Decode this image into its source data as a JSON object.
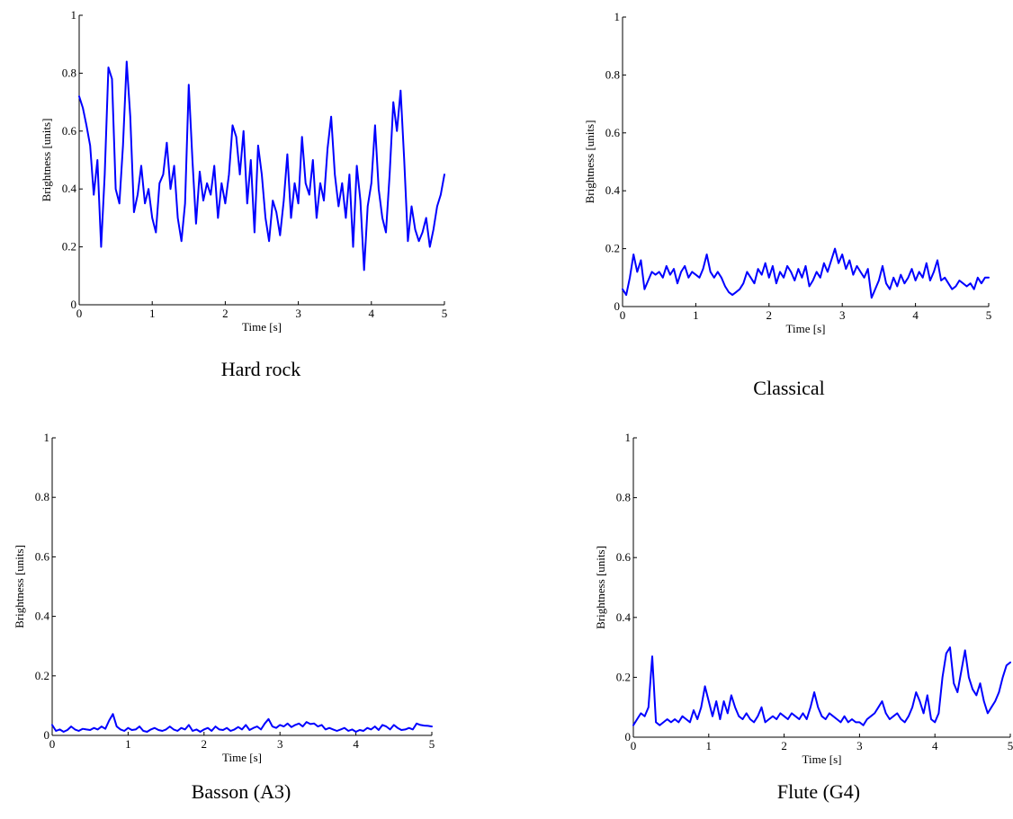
{
  "captions": [
    "Hard rock",
    "Classical",
    "Basson (A3)",
    "Flute (G4)"
  ],
  "chart_data": [
    {
      "type": "line",
      "title": "",
      "caption": "Hard rock",
      "xlabel": "Time [s]",
      "ylabel": "Brightness [units]",
      "xlim": [
        0,
        5
      ],
      "ylim": [
        0,
        1
      ],
      "xticks": [
        "0",
        "1",
        "2",
        "3",
        "4",
        "5"
      ],
      "yticks": [
        "0",
        "0.2",
        "0.4",
        "0.6",
        "0.8",
        "1"
      ],
      "grid": false,
      "color": "#0000ff",
      "x": [
        0.0,
        0.05,
        0.1,
        0.15,
        0.2,
        0.25,
        0.3,
        0.35,
        0.4,
        0.45,
        0.5,
        0.55,
        0.6,
        0.65,
        0.7,
        0.75,
        0.8,
        0.85,
        0.9,
        0.95,
        1.0,
        1.05,
        1.1,
        1.15,
        1.2,
        1.25,
        1.3,
        1.35,
        1.4,
        1.45,
        1.5,
        1.55,
        1.6,
        1.65,
        1.7,
        1.75,
        1.8,
        1.85,
        1.9,
        1.95,
        2.0,
        2.05,
        2.1,
        2.15,
        2.2,
        2.25,
        2.3,
        2.35,
        2.4,
        2.45,
        2.5,
        2.55,
        2.6,
        2.65,
        2.7,
        2.75,
        2.8,
        2.85,
        2.9,
        2.95,
        3.0,
        3.05,
        3.1,
        3.15,
        3.2,
        3.25,
        3.3,
        3.35,
        3.4,
        3.45,
        3.5,
        3.55,
        3.6,
        3.65,
        3.7,
        3.75,
        3.8,
        3.85,
        3.9,
        3.95,
        4.0,
        4.05,
        4.1,
        4.15,
        4.2,
        4.25,
        4.3,
        4.35,
        4.4,
        4.45,
        4.5,
        4.55,
        4.6,
        4.65,
        4.7,
        4.75,
        4.8,
        4.85,
        4.9,
        4.95,
        5.0
      ],
      "y": [
        0.72,
        0.68,
        0.62,
        0.55,
        0.38,
        0.5,
        0.2,
        0.45,
        0.82,
        0.78,
        0.4,
        0.35,
        0.55,
        0.84,
        0.65,
        0.32,
        0.38,
        0.48,
        0.35,
        0.4,
        0.3,
        0.25,
        0.42,
        0.45,
        0.56,
        0.4,
        0.48,
        0.3,
        0.22,
        0.35,
        0.76,
        0.5,
        0.28,
        0.46,
        0.36,
        0.42,
        0.38,
        0.48,
        0.3,
        0.42,
        0.35,
        0.45,
        0.62,
        0.58,
        0.45,
        0.6,
        0.35,
        0.5,
        0.25,
        0.55,
        0.45,
        0.3,
        0.22,
        0.36,
        0.32,
        0.24,
        0.36,
        0.52,
        0.3,
        0.42,
        0.35,
        0.58,
        0.42,
        0.38,
        0.5,
        0.3,
        0.42,
        0.36,
        0.54,
        0.65,
        0.45,
        0.34,
        0.42,
        0.3,
        0.45,
        0.2,
        0.48,
        0.36,
        0.12,
        0.34,
        0.42,
        0.62,
        0.4,
        0.3,
        0.25,
        0.45,
        0.7,
        0.6,
        0.74,
        0.5,
        0.22,
        0.34,
        0.26,
        0.22,
        0.25,
        0.3,
        0.2,
        0.26,
        0.34,
        0.38,
        0.45
      ]
    },
    {
      "type": "line",
      "title": "",
      "caption": "Classical",
      "xlabel": "Time [s]",
      "ylabel": "Brightness [units]",
      "xlim": [
        0,
        5
      ],
      "ylim": [
        0,
        1
      ],
      "xticks": [
        "0",
        "1",
        "2",
        "3",
        "4",
        "5"
      ],
      "yticks": [
        "0",
        "0.2",
        "0.4",
        "0.6",
        "0.8",
        "1"
      ],
      "grid": false,
      "color": "#0000ff",
      "x": [
        0.0,
        0.05,
        0.1,
        0.15,
        0.2,
        0.25,
        0.3,
        0.35,
        0.4,
        0.45,
        0.5,
        0.55,
        0.6,
        0.65,
        0.7,
        0.75,
        0.8,
        0.85,
        0.9,
        0.95,
        1.0,
        1.05,
        1.1,
        1.15,
        1.2,
        1.25,
        1.3,
        1.35,
        1.4,
        1.45,
        1.5,
        1.55,
        1.6,
        1.65,
        1.7,
        1.75,
        1.8,
        1.85,
        1.9,
        1.95,
        2.0,
        2.05,
        2.1,
        2.15,
        2.2,
        2.25,
        2.3,
        2.35,
        2.4,
        2.45,
        2.5,
        2.55,
        2.6,
        2.65,
        2.7,
        2.75,
        2.8,
        2.85,
        2.9,
        2.95,
        3.0,
        3.05,
        3.1,
        3.15,
        3.2,
        3.25,
        3.3,
        3.35,
        3.4,
        3.45,
        3.5,
        3.55,
        3.6,
        3.65,
        3.7,
        3.75,
        3.8,
        3.85,
        3.9,
        3.95,
        4.0,
        4.05,
        4.1,
        4.15,
        4.2,
        4.25,
        4.3,
        4.35,
        4.4,
        4.45,
        4.5,
        4.55,
        4.6,
        4.65,
        4.7,
        4.75,
        4.8,
        4.85,
        4.9,
        4.95,
        5.0
      ],
      "y": [
        0.06,
        0.04,
        0.1,
        0.18,
        0.12,
        0.16,
        0.06,
        0.09,
        0.12,
        0.11,
        0.12,
        0.1,
        0.14,
        0.11,
        0.13,
        0.08,
        0.12,
        0.14,
        0.1,
        0.12,
        0.11,
        0.1,
        0.13,
        0.18,
        0.12,
        0.1,
        0.12,
        0.1,
        0.07,
        0.05,
        0.04,
        0.05,
        0.06,
        0.08,
        0.12,
        0.1,
        0.08,
        0.13,
        0.11,
        0.15,
        0.1,
        0.14,
        0.08,
        0.12,
        0.1,
        0.14,
        0.12,
        0.09,
        0.13,
        0.1,
        0.14,
        0.07,
        0.09,
        0.12,
        0.1,
        0.15,
        0.12,
        0.16,
        0.2,
        0.15,
        0.18,
        0.13,
        0.16,
        0.11,
        0.14,
        0.12,
        0.1,
        0.13,
        0.03,
        0.06,
        0.09,
        0.14,
        0.08,
        0.06,
        0.1,
        0.07,
        0.11,
        0.08,
        0.1,
        0.13,
        0.09,
        0.12,
        0.1,
        0.15,
        0.09,
        0.12,
        0.16,
        0.09,
        0.1,
        0.08,
        0.06,
        0.07,
        0.09,
        0.08,
        0.07,
        0.08,
        0.06,
        0.1,
        0.08,
        0.1,
        0.1
      ]
    },
    {
      "type": "line",
      "title": "",
      "caption": "Basson (A3)",
      "xlabel": "Time [s]",
      "ylabel": "Brightness [units]",
      "xlim": [
        0,
        5
      ],
      "ylim": [
        0,
        1
      ],
      "xticks": [
        "0",
        "1",
        "2",
        "3",
        "4",
        "5"
      ],
      "yticks": [
        "0",
        "0.2",
        "0.4",
        "0.6",
        "0.8",
        "1"
      ],
      "grid": false,
      "color": "#0000ff",
      "x": [
        0.0,
        0.05,
        0.1,
        0.15,
        0.2,
        0.25,
        0.3,
        0.35,
        0.4,
        0.45,
        0.5,
        0.55,
        0.6,
        0.65,
        0.7,
        0.75,
        0.8,
        0.85,
        0.9,
        0.95,
        1.0,
        1.05,
        1.1,
        1.15,
        1.2,
        1.25,
        1.3,
        1.35,
        1.4,
        1.45,
        1.5,
        1.55,
        1.6,
        1.65,
        1.7,
        1.75,
        1.8,
        1.85,
        1.9,
        1.95,
        2.0,
        2.05,
        2.1,
        2.15,
        2.2,
        2.25,
        2.3,
        2.35,
        2.4,
        2.45,
        2.5,
        2.55,
        2.6,
        2.65,
        2.7,
        2.75,
        2.8,
        2.85,
        2.9,
        2.95,
        3.0,
        3.05,
        3.1,
        3.15,
        3.2,
        3.25,
        3.3,
        3.35,
        3.4,
        3.45,
        3.5,
        3.55,
        3.6,
        3.65,
        3.7,
        3.75,
        3.8,
        3.85,
        3.9,
        3.95,
        4.0,
        4.05,
        4.1,
        4.15,
        4.2,
        4.25,
        4.3,
        4.35,
        4.4,
        4.45,
        4.5,
        4.55,
        4.6,
        4.65,
        4.7,
        4.75,
        4.8,
        4.85,
        4.9,
        4.95,
        5.0
      ],
      "y": [
        0.035,
        0.015,
        0.02,
        0.012,
        0.018,
        0.03,
        0.02,
        0.015,
        0.022,
        0.02,
        0.018,
        0.025,
        0.02,
        0.03,
        0.022,
        0.05,
        0.072,
        0.03,
        0.02,
        0.015,
        0.025,
        0.018,
        0.02,
        0.03,
        0.015,
        0.012,
        0.02,
        0.025,
        0.018,
        0.015,
        0.02,
        0.03,
        0.02,
        0.015,
        0.025,
        0.02,
        0.035,
        0.015,
        0.02,
        0.012,
        0.02,
        0.025,
        0.015,
        0.03,
        0.02,
        0.018,
        0.025,
        0.015,
        0.02,
        0.028,
        0.02,
        0.035,
        0.018,
        0.025,
        0.03,
        0.02,
        0.04,
        0.055,
        0.03,
        0.025,
        0.035,
        0.03,
        0.04,
        0.028,
        0.035,
        0.04,
        0.03,
        0.045,
        0.038,
        0.04,
        0.03,
        0.035,
        0.02,
        0.025,
        0.02,
        0.015,
        0.02,
        0.025,
        0.015,
        0.02,
        0.012,
        0.018,
        0.015,
        0.025,
        0.02,
        0.03,
        0.018,
        0.035,
        0.03,
        0.02,
        0.035,
        0.025,
        0.018,
        0.02,
        0.025,
        0.02,
        0.04,
        0.035,
        0.033,
        0.032,
        0.03
      ]
    },
    {
      "type": "line",
      "title": "",
      "caption": "Flute (G4)",
      "xlabel": "Time [s]",
      "ylabel": "Brightness [units]",
      "xlim": [
        0,
        5
      ],
      "ylim": [
        0,
        1
      ],
      "xticks": [
        "0",
        "1",
        "2",
        "3",
        "4",
        "5"
      ],
      "yticks": [
        "0",
        "0.2",
        "0.4",
        "0.6",
        "0.8",
        "1"
      ],
      "grid": false,
      "color": "#0000ff",
      "x": [
        0.0,
        0.05,
        0.1,
        0.15,
        0.2,
        0.25,
        0.3,
        0.35,
        0.4,
        0.45,
        0.5,
        0.55,
        0.6,
        0.65,
        0.7,
        0.75,
        0.8,
        0.85,
        0.9,
        0.95,
        1.0,
        1.05,
        1.1,
        1.15,
        1.2,
        1.25,
        1.3,
        1.35,
        1.4,
        1.45,
        1.5,
        1.55,
        1.6,
        1.65,
        1.7,
        1.75,
        1.8,
        1.85,
        1.9,
        1.95,
        2.0,
        2.05,
        2.1,
        2.15,
        2.2,
        2.25,
        2.3,
        2.35,
        2.4,
        2.45,
        2.5,
        2.55,
        2.6,
        2.65,
        2.7,
        2.75,
        2.8,
        2.85,
        2.9,
        2.95,
        3.0,
        3.05,
        3.1,
        3.15,
        3.2,
        3.25,
        3.3,
        3.35,
        3.4,
        3.45,
        3.5,
        3.55,
        3.6,
        3.65,
        3.7,
        3.75,
        3.8,
        3.85,
        3.9,
        3.95,
        4.0,
        4.05,
        4.1,
        4.15,
        4.2,
        4.25,
        4.3,
        4.35,
        4.4,
        4.45,
        4.5,
        4.55,
        4.6,
        4.65,
        4.7,
        4.75,
        4.8,
        4.85,
        4.9,
        4.95,
        5.0
      ],
      "y": [
        0.04,
        0.06,
        0.08,
        0.07,
        0.1,
        0.27,
        0.05,
        0.04,
        0.05,
        0.06,
        0.05,
        0.06,
        0.05,
        0.07,
        0.06,
        0.05,
        0.09,
        0.06,
        0.1,
        0.17,
        0.12,
        0.07,
        0.12,
        0.06,
        0.12,
        0.08,
        0.14,
        0.1,
        0.07,
        0.06,
        0.08,
        0.06,
        0.05,
        0.07,
        0.1,
        0.05,
        0.06,
        0.07,
        0.06,
        0.08,
        0.07,
        0.06,
        0.08,
        0.07,
        0.06,
        0.08,
        0.06,
        0.1,
        0.15,
        0.1,
        0.07,
        0.06,
        0.08,
        0.07,
        0.06,
        0.05,
        0.07,
        0.05,
        0.06,
        0.05,
        0.05,
        0.04,
        0.06,
        0.07,
        0.08,
        0.1,
        0.12,
        0.08,
        0.06,
        0.07,
        0.08,
        0.06,
        0.05,
        0.07,
        0.1,
        0.15,
        0.12,
        0.08,
        0.14,
        0.06,
        0.05,
        0.08,
        0.2,
        0.28,
        0.3,
        0.18,
        0.15,
        0.22,
        0.29,
        0.2,
        0.16,
        0.14,
        0.18,
        0.12,
        0.08,
        0.1,
        0.12,
        0.15,
        0.2,
        0.24,
        0.25
      ]
    }
  ]
}
